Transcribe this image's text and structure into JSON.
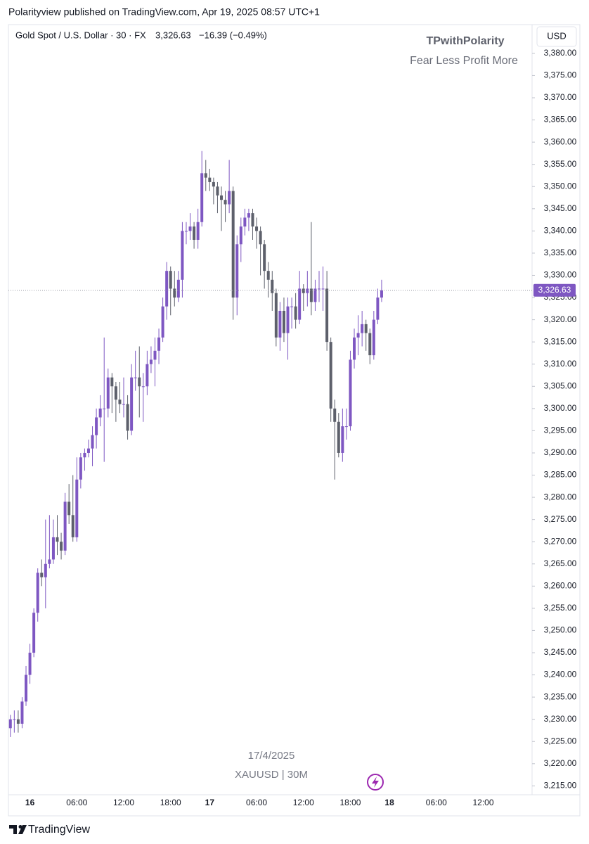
{
  "header": {
    "published": "Polarityview published on TradingView.com, Apr 19, 2025 08:57 UTC+1"
  },
  "chart_data": {
    "type": "candlestick",
    "legend": {
      "symbol": "Gold Spot / U.S. Dollar · 30 · FX",
      "price": "3,326.63",
      "change": "−16.39 (−0.49%)"
    },
    "watermark": {
      "title": "TPwithPolarity",
      "subtitle": "Fear Less Profit More",
      "date": "17/4/2025",
      "ticker": "XAUUSD | 30M"
    },
    "currency": "USD",
    "up_color": "#7e57c2",
    "down_color": "#5d606b",
    "last_price": {
      "value": 3326.63,
      "label": "3,326.63"
    },
    "categories": [
      null,
      null,
      null,
      null,
      null,
      "16",
      null,
      null,
      null,
      null,
      null,
      null,
      null,
      null,
      null,
      null,
      null,
      "06:00",
      null,
      null,
      null,
      null,
      null,
      null,
      null,
      null,
      null,
      null,
      null,
      "12:00",
      null,
      null,
      null,
      null,
      null,
      null,
      null,
      null,
      null,
      null,
      null,
      "18:00",
      null,
      null,
      null,
      null,
      null,
      null,
      null,
      null,
      null,
      "17",
      null,
      null,
      null,
      null,
      null,
      null,
      null,
      null,
      null,
      null,
      null,
      "06:00",
      null,
      null,
      null,
      null,
      null,
      null,
      null,
      null,
      null,
      null,
      null,
      "12:00",
      null,
      null,
      null,
      null,
      null,
      null,
      null,
      null,
      null,
      null,
      null,
      "18:00",
      null,
      null,
      null,
      null,
      null,
      null,
      null,
      null,
      null,
      "18",
      null,
      null,
      null,
      null,
      null,
      null,
      null,
      null,
      null,
      null,
      null,
      "06:00",
      null,
      null,
      null,
      null,
      null,
      null,
      null,
      null,
      null,
      null,
      null,
      "12:00",
      null,
      null,
      null,
      null,
      null,
      null,
      null,
      null,
      null,
      null,
      null,
      null
    ],
    "open": [
      3228,
      3230,
      3230,
      3229,
      3234,
      3240,
      3245,
      3254,
      3263,
      3262,
      3265,
      3266,
      3271,
      3270,
      3268,
      3279,
      3276,
      3271,
      3284,
      3289,
      3290,
      3291,
      3294,
      3298,
      3300,
      3300,
      3307,
      3305,
      3302,
      3301,
      3301,
      3295,
      3307,
      3307,
      3305,
      3305,
      3310,
      3311,
      3313,
      3316,
      3323,
      3331,
      3327,
      3325,
      3329,
      3340,
      3340,
      3341,
      3338,
      3342,
      3353,
      3352,
      3351,
      3350,
      3348,
      3347,
      3346,
      3349,
      3325,
      3337,
      3341,
      3343,
      3344,
      3341,
      3340,
      3337,
      3331,
      3329,
      3326,
      3316,
      3322,
      3317,
      3323,
      3323,
      3320,
      3327,
      3326,
      3327,
      3324,
      3327,
      3327,
      3327,
      3315,
      3300,
      3297,
      3290,
      3296,
      3296,
      3311,
      3316,
      3317,
      3319,
      3317,
      3312,
      3320,
      3325,
      null,
      null,
      null,
      null,
      null,
      null,
      null,
      null,
      null,
      null,
      null,
      null,
      null,
      null,
      null,
      null,
      null,
      null,
      null,
      null,
      null,
      null,
      null,
      null,
      null,
      null,
      null,
      null,
      null,
      null,
      null,
      null,
      null,
      null,
      null,
      null,
      null,
      null
    ],
    "high": [
      3231,
      3232,
      3232,
      3235,
      3242,
      3247,
      3255,
      3264,
      3266,
      3275,
      3276,
      3275,
      3276,
      3272,
      3281,
      3283,
      3285,
      3289,
      3290,
      3291,
      3293,
      3296,
      3300,
      3303,
      3316,
      3309,
      3308,
      3306,
      3306,
      3307,
      3303,
      3310,
      3313,
      3314,
      3308,
      3313,
      3314,
      3316,
      3318,
      3325,
      3333,
      3332,
      3331,
      3331,
      3342,
      3342,
      3344,
      3342,
      3345,
      3358,
      3356,
      3354,
      3352,
      3351,
      3350,
      3349,
      3356,
      3350,
      3339,
      3343,
      3345,
      3345,
      3345,
      3343,
      3341,
      3338,
      3333,
      3331,
      3327,
      3324,
      3325,
      3325,
      3325,
      3326,
      3331,
      3328,
      3331,
      3342,
      3329,
      3331,
      3332,
      3331,
      3316,
      3302,
      3299,
      3300,
      3300,
      3313,
      3318,
      3321,
      3322,
      3320,
      3318,
      3322,
      3327,
      3329,
      null,
      null,
      null,
      null,
      null,
      null,
      null,
      null,
      null,
      null,
      null,
      null,
      null,
      null,
      null,
      null,
      null,
      null,
      null,
      null,
      null,
      null,
      null,
      null,
      null,
      null,
      null,
      null,
      null,
      null,
      null,
      null,
      null,
      null,
      null,
      null,
      null,
      null
    ],
    "low": [
      3226,
      3227,
      3227,
      3228,
      3233,
      3238,
      3244,
      3252,
      3260,
      3255,
      3264,
      3265,
      3267,
      3266,
      3267,
      3274,
      3270,
      3270,
      3282,
      3286,
      3289,
      3287,
      3291,
      3296,
      3288,
      3298,
      3299,
      3297,
      3299,
      3298,
      3293,
      3294,
      3304,
      3298,
      3297,
      3303,
      3308,
      3305,
      3310,
      3315,
      3320,
      3321,
      3323,
      3324,
      3325,
      3337,
      3338,
      3336,
      3336,
      3341,
      3349,
      3349,
      3346,
      3344,
      3340,
      3342,
      3344,
      3320,
      3321,
      3333,
      3339,
      3340,
      3338,
      3336,
      3330,
      3327,
      3325,
      3322,
      3314,
      3313,
      3315,
      3311,
      3318,
      3318,
      3319,
      3322,
      3323,
      3321,
      3322,
      3324,
      3322,
      3313,
      3297,
      3284,
      3289,
      3288,
      3293,
      3295,
      3309,
      3312,
      3314,
      3313,
      3310,
      3311,
      3319,
      3324,
      null,
      null,
      null,
      null,
      null,
      null,
      null,
      null,
      null,
      null,
      null,
      null,
      null,
      null,
      null,
      null,
      null,
      null,
      null,
      null,
      null,
      null,
      null,
      null,
      null,
      null,
      null,
      null,
      null,
      null,
      null,
      null,
      null,
      null,
      null,
      null,
      null,
      null
    ],
    "close": [
      3230,
      3230,
      3229,
      3234,
      3240,
      3245,
      3254,
      3263,
      3262,
      3265,
      3266,
      3271,
      3270,
      3268,
      3279,
      3276,
      3271,
      3284,
      3289,
      3290,
      3291,
      3294,
      3298,
      3300,
      3300,
      3307,
      3305,
      3302,
      3301,
      3301,
      3295,
      3307,
      3307,
      3305,
      3305,
      3310,
      3311,
      3313,
      3316,
      3323,
      3331,
      3327,
      3325,
      3329,
      3340,
      3340,
      3341,
      3338,
      3342,
      3353,
      3352,
      3351,
      3350,
      3348,
      3347,
      3346,
      3349,
      3325,
      3337,
      3341,
      3343,
      3344,
      3341,
      3340,
      3337,
      3331,
      3329,
      3326,
      3316,
      3322,
      3317,
      3323,
      3323,
      3320,
      3327,
      3326,
      3327,
      3324,
      3327,
      3327,
      3327,
      3315,
      3300,
      3297,
      3290,
      3296,
      3296,
      3311,
      3316,
      3317,
      3319,
      3317,
      3312,
      3320,
      3325,
      3326.63,
      null,
      null,
      null,
      null,
      null,
      null,
      null,
      null,
      null,
      null,
      null,
      null,
      null,
      null,
      null,
      null,
      null,
      null,
      null,
      null,
      null,
      null,
      null,
      null,
      null,
      null,
      null,
      null,
      null,
      null,
      null,
      null,
      null,
      null,
      null,
      null,
      null,
      null
    ],
    "ylim": [
      3213,
      3386
    ],
    "yticks": [
      {
        "value": 3215,
        "label": "3,215.00"
      },
      {
        "value": 3220,
        "label": "3,220.00"
      },
      {
        "value": 3225,
        "label": "3,225.00"
      },
      {
        "value": 3230,
        "label": "3,230.00"
      },
      {
        "value": 3235,
        "label": "3,235.00"
      },
      {
        "value": 3240,
        "label": "3,240.00"
      },
      {
        "value": 3245,
        "label": "3,245.00"
      },
      {
        "value": 3250,
        "label": "3,250.00"
      },
      {
        "value": 3255,
        "label": "3,255.00"
      },
      {
        "value": 3260,
        "label": "3,260.00"
      },
      {
        "value": 3265,
        "label": "3,265.00"
      },
      {
        "value": 3270,
        "label": "3,270.00"
      },
      {
        "value": 3275,
        "label": "3,275.00"
      },
      {
        "value": 3280,
        "label": "3,280.00"
      },
      {
        "value": 3285,
        "label": "3,285.00"
      },
      {
        "value": 3290,
        "label": "3,290.00"
      },
      {
        "value": 3295,
        "label": "3,295.00"
      },
      {
        "value": 3300,
        "label": "3,300.00"
      },
      {
        "value": 3305,
        "label": "3,305.00"
      },
      {
        "value": 3310,
        "label": "3,310.00"
      },
      {
        "value": 3315,
        "label": "3,315.00"
      },
      {
        "value": 3320,
        "label": "3,320.00"
      },
      {
        "value": 3325,
        "label": "3,325.00"
      },
      {
        "value": 3330,
        "label": "3,330.00"
      },
      {
        "value": 3335,
        "label": "3,335.00"
      },
      {
        "value": 3340,
        "label": "3,340.00"
      },
      {
        "value": 3345,
        "label": "3,345.00"
      },
      {
        "value": 3350,
        "label": "3,350.00"
      },
      {
        "value": 3355,
        "label": "3,355.00"
      },
      {
        "value": 3360,
        "label": "3,360.00"
      },
      {
        "value": 3365,
        "label": "3,365.00"
      },
      {
        "value": 3370,
        "label": "3,370.00"
      },
      {
        "value": 3375,
        "label": "3,375.00"
      },
      {
        "value": 3380,
        "label": "3,380.00"
      }
    ],
    "grid": false
  },
  "footer": {
    "brand": "TradingView"
  }
}
